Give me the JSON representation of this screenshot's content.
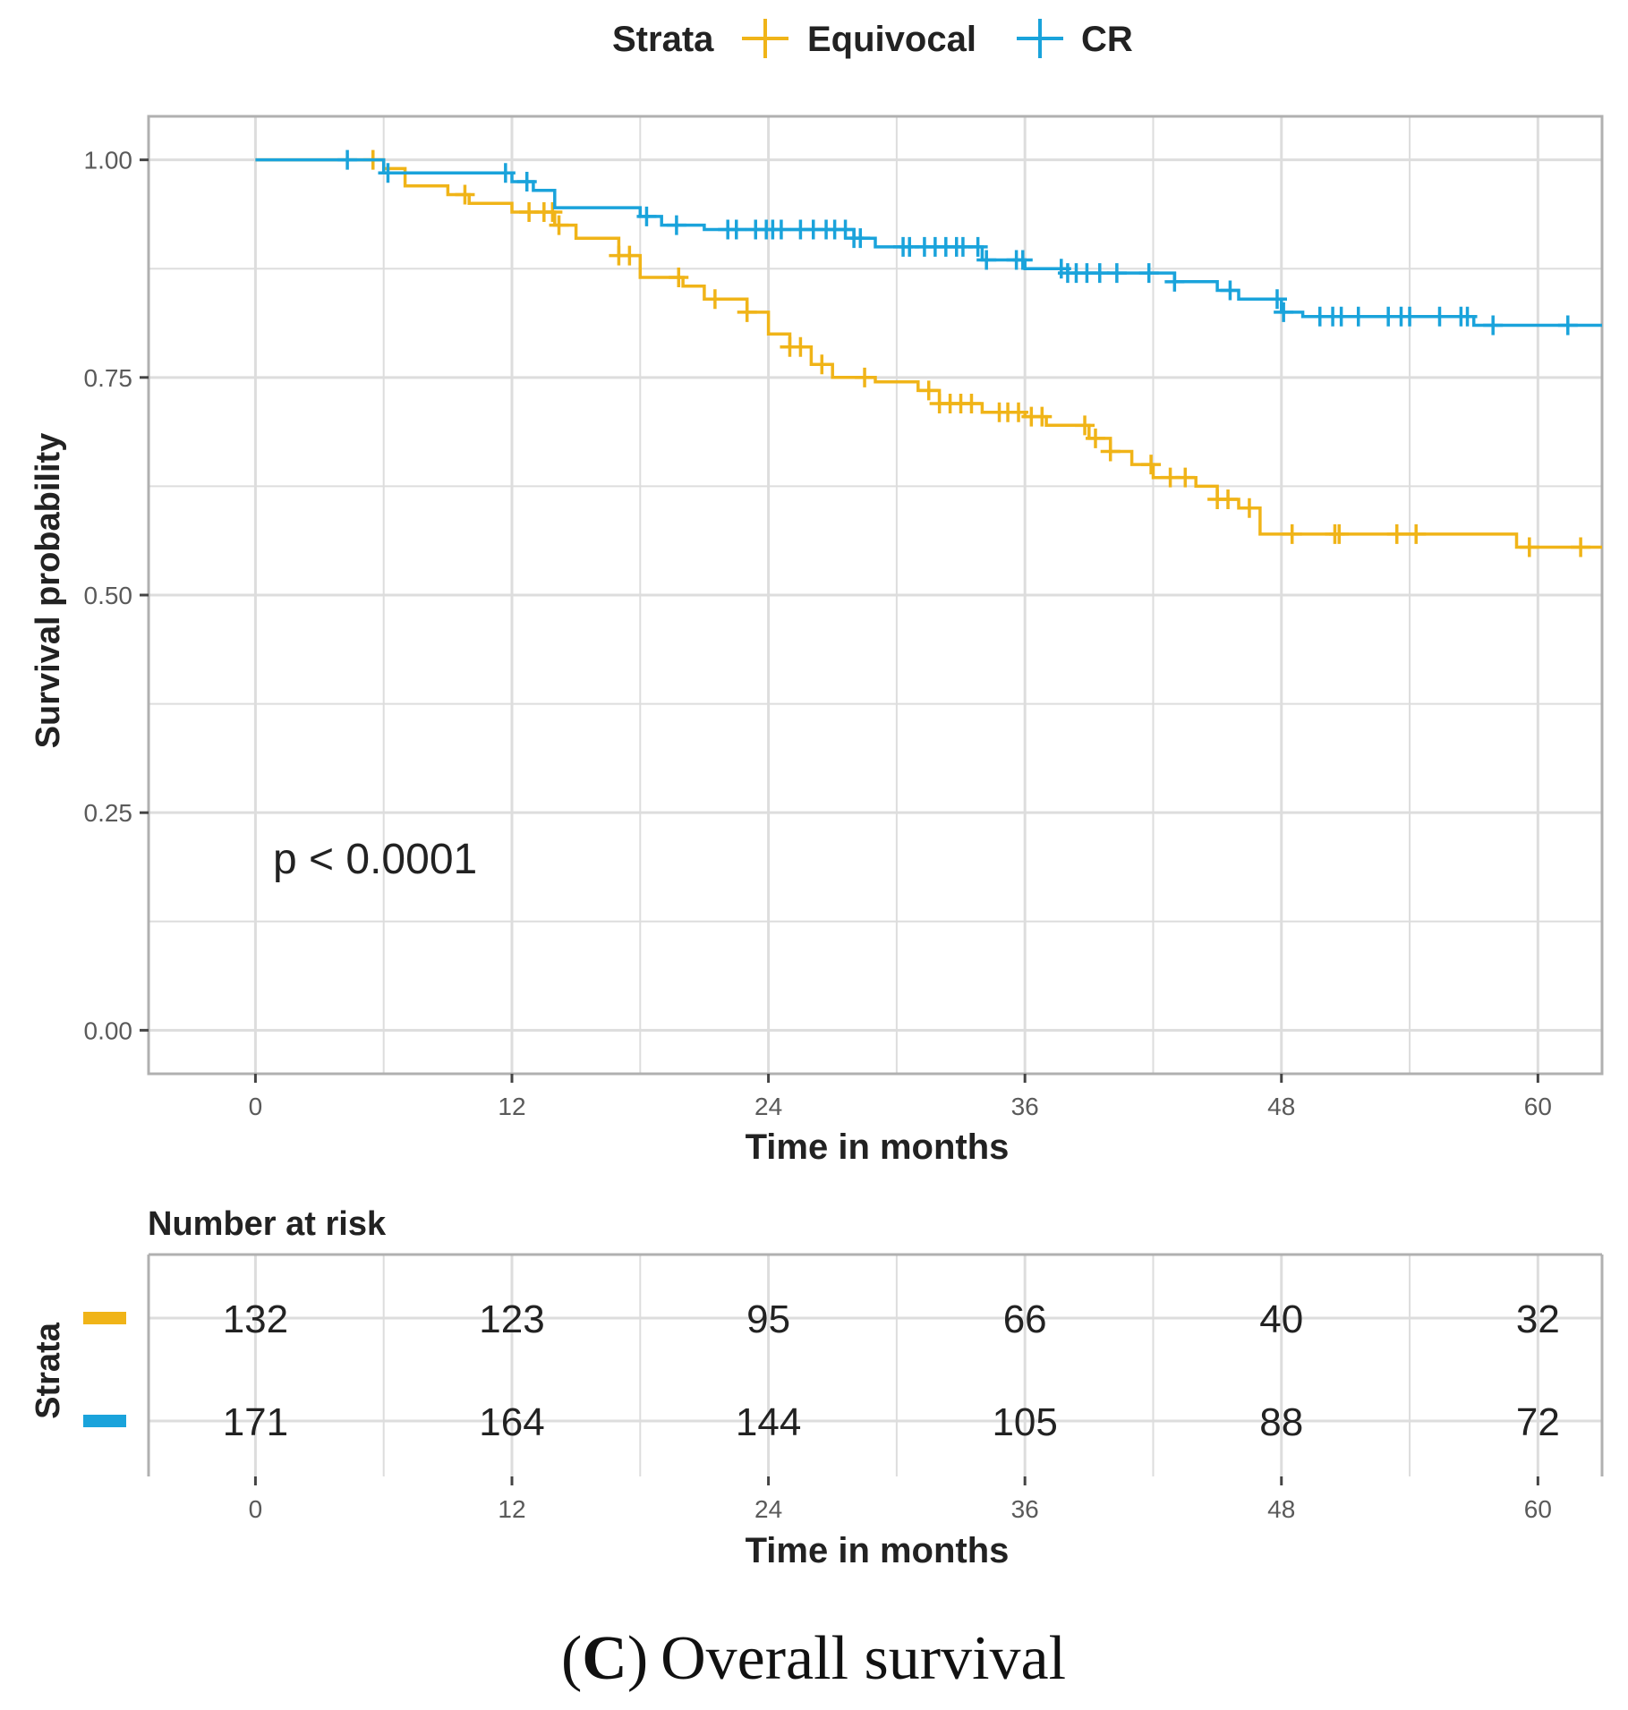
{
  "colors": {
    "equivocal": "#F0B418",
    "cr": "#1AA3DB",
    "grid": "#DDDDDD",
    "axis": "#B0B0B0"
  },
  "caption": {
    "letter": "C",
    "text": "Overall survival",
    "open_paren": "(",
    "close_paren": ")"
  },
  "chart_data": {
    "type": "line",
    "subtype": "kaplan-meier",
    "legend": {
      "title": "Strata",
      "position": "top",
      "entries": [
        "Equivocal",
        "CR"
      ]
    },
    "xlabel": "Time in months",
    "ylabel": "Survival probability",
    "xlim": [
      -5,
      63
    ],
    "ylim": [
      -0.05,
      1.05
    ],
    "xticks": [
      0,
      12,
      24,
      36,
      48,
      60
    ],
    "yticks": [
      0.0,
      0.25,
      0.5,
      0.75,
      1.0
    ],
    "ytick_labels": [
      "0.00",
      "0.25",
      "0.50",
      "0.75",
      "1.00"
    ],
    "annotation": "p < 0.0001",
    "series": [
      {
        "name": "Equivocal",
        "color_key": "equivocal",
        "steps": [
          [
            0,
            1.0
          ],
          [
            6,
            0.99
          ],
          [
            7,
            0.97
          ],
          [
            9,
            0.96
          ],
          [
            10,
            0.95
          ],
          [
            12,
            0.94
          ],
          [
            14,
            0.925
          ],
          [
            15,
            0.91
          ],
          [
            17,
            0.89
          ],
          [
            18,
            0.865
          ],
          [
            20,
            0.855
          ],
          [
            21,
            0.84
          ],
          [
            23,
            0.825
          ],
          [
            24,
            0.8
          ],
          [
            25,
            0.785
          ],
          [
            26,
            0.765
          ],
          [
            27,
            0.75
          ],
          [
            29,
            0.745
          ],
          [
            31,
            0.735
          ],
          [
            32,
            0.72
          ],
          [
            34,
            0.71
          ],
          [
            36,
            0.705
          ],
          [
            37,
            0.695
          ],
          [
            39,
            0.68
          ],
          [
            40,
            0.665
          ],
          [
            41,
            0.65
          ],
          [
            42,
            0.635
          ],
          [
            44,
            0.625
          ],
          [
            45,
            0.61
          ],
          [
            46,
            0.6
          ],
          [
            47,
            0.57
          ],
          [
            59,
            0.555
          ],
          [
            63,
            0.555
          ]
        ],
        "censors": [
          5.5,
          9.8,
          12.8,
          13.5,
          13.9,
          14.2,
          17,
          17.5,
          19.8,
          21.5,
          23,
          25,
          25.5,
          26.5,
          28.5,
          31.5,
          32,
          32.5,
          33,
          33.5,
          34.8,
          35.2,
          35.7,
          36.3,
          36.8,
          38.8,
          39.3,
          40,
          41.9,
          42.8,
          43.5,
          45,
          45.5,
          46.5,
          48.5,
          50.5,
          50.7,
          53.4,
          54.3,
          59.6,
          62
        ]
      },
      {
        "name": "CR",
        "color_key": "cr",
        "steps": [
          [
            0,
            1.0
          ],
          [
            6,
            0.985
          ],
          [
            12,
            0.975
          ],
          [
            13,
            0.965
          ],
          [
            14,
            0.945
          ],
          [
            18,
            0.935
          ],
          [
            19,
            0.925
          ],
          [
            21,
            0.92
          ],
          [
            28,
            0.91
          ],
          [
            29,
            0.9
          ],
          [
            34,
            0.885
          ],
          [
            36,
            0.875
          ],
          [
            38,
            0.87
          ],
          [
            43,
            0.86
          ],
          [
            45,
            0.85
          ],
          [
            46,
            0.84
          ],
          [
            48,
            0.825
          ],
          [
            49,
            0.82
          ],
          [
            57,
            0.81
          ],
          [
            63,
            0.81
          ]
        ],
        "censors": [
          4.3,
          6.2,
          11.7,
          12.7,
          18.3,
          19.7,
          22.1,
          22.5,
          23.4,
          23.9,
          24.2,
          24.6,
          25.5,
          26.1,
          26.7,
          27.1,
          27.6,
          28,
          28.3,
          30.3,
          30.6,
          31.3,
          31.8,
          32.3,
          32.8,
          33.1,
          33.8,
          34.2,
          35.6,
          35.9,
          37.7,
          38,
          38.4,
          38.9,
          39.5,
          40.3,
          41.8,
          43,
          45.6,
          47.8,
          48.1,
          49.8,
          50.4,
          50.8,
          51.6,
          53,
          53.6,
          54,
          55.4,
          56.4,
          56.7,
          57.9,
          61.4
        ]
      }
    ]
  },
  "risk_table": {
    "title": "Number at risk",
    "ylabel": "Strata",
    "xlabel": "Time in months",
    "times": [
      0,
      12,
      24,
      36,
      48,
      60
    ],
    "rows": [
      {
        "name": "Equivocal",
        "color_key": "equivocal",
        "values": [
          "132",
          "123",
          "95",
          "66",
          "40",
          "32"
        ]
      },
      {
        "name": "CR",
        "color_key": "cr",
        "values": [
          "171",
          "164",
          "144",
          "105",
          "88",
          "72"
        ]
      }
    ]
  }
}
